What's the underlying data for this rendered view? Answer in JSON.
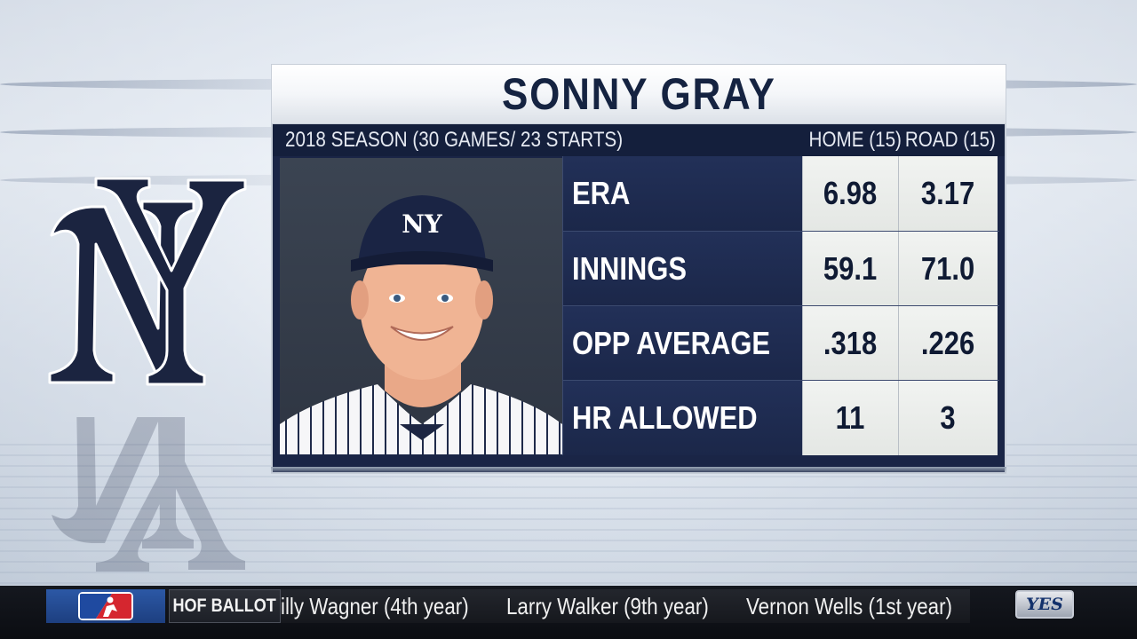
{
  "player": {
    "name": "SONNY GRAY",
    "season_line": "2018 SEASON (30 GAMES/ 23 STARTS)",
    "col_home": "HOME (15)",
    "col_road": "ROAD (15)",
    "cap_logo": "NY"
  },
  "stats": [
    {
      "label": "ERA",
      "home": "6.98",
      "road": "3.17"
    },
    {
      "label": "INNINGS",
      "home": "59.1",
      "road": "71.0"
    },
    {
      "label": "OPP AVERAGE",
      "home": ".318",
      "road": ".226"
    },
    {
      "label": "HR ALLOWED",
      "home": "11",
      "road": "3"
    }
  ],
  "ticker": {
    "category": "HOF BALLOT",
    "items": [
      "illy Wagner (4th year)",
      "Larry Walker (9th year)",
      "Vernon Wells (1st year)"
    ],
    "network": "YES",
    "league_logo": "mlb-logo-icon"
  },
  "colors": {
    "navy": "#1a2546",
    "title_text": "#152341",
    "cell_bg": "#eceeec",
    "ticker_bg": "#0b0d12"
  }
}
